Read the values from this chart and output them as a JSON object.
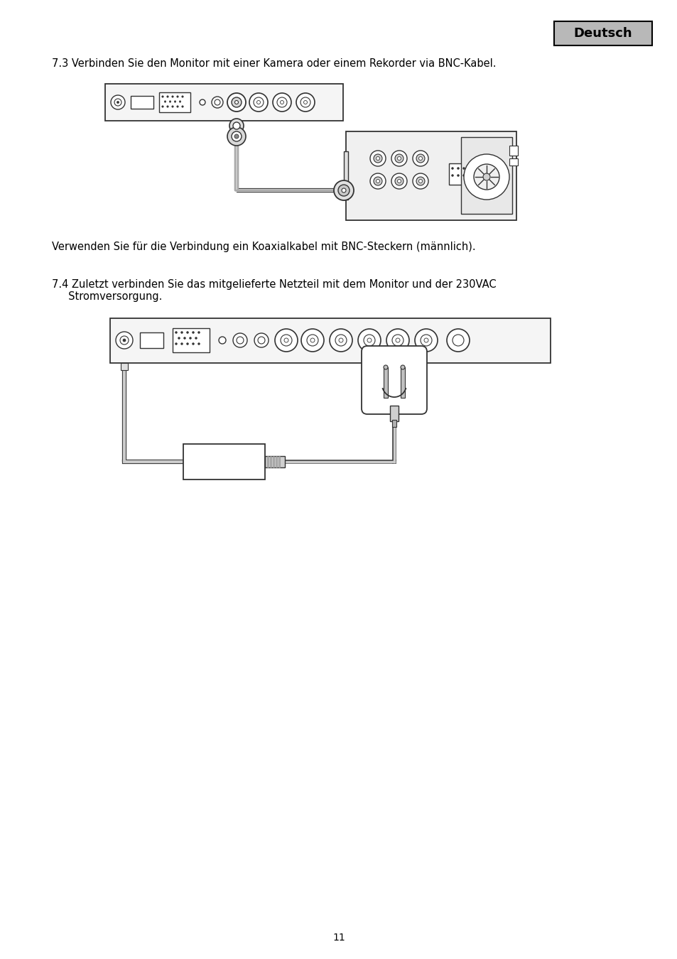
{
  "page_bg": "#ffffff",
  "page_number": "11",
  "deutsch_label": "Deutsch",
  "deutsch_bg": "#b8b8b8",
  "deutsch_border": "#000000",
  "section_73_text": "7.3 Verbinden Sie den Monitor mit einer Kamera oder einem Rekorder via BNC-Kabel.",
  "section_73_note": "Verwenden Sie für die Verbindung ein Koaxialkabel mit BNC-Steckern (männlich).",
  "section_74_text1": "7.4 Zuletzt verbinden Sie das mitgelieferte Netzteil mit dem Monitor und der 230VAC",
  "section_74_text2": "     Stromversorgung.",
  "text_color": "#000000",
  "font_size_body": 10.5,
  "diagram_line_color": "#333333",
  "diagram_fill": "#ffffff",
  "diagram_gray": "#d0d0d0"
}
